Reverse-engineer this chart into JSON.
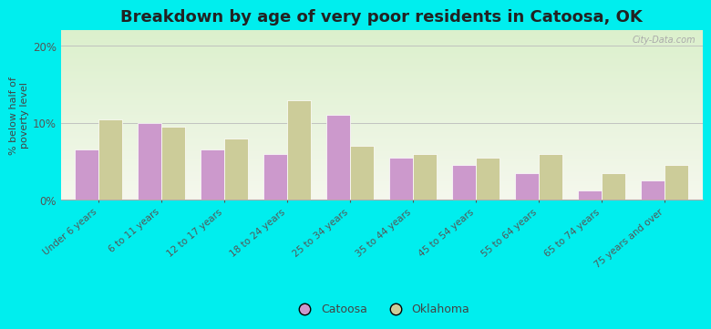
{
  "title": "Breakdown by age of very poor residents in Catoosa, OK",
  "ylabel": "% below half of\npoverty level",
  "categories": [
    "Under 6 years",
    "6 to 11 years",
    "12 to 17 years",
    "18 to 24 years",
    "25 to 34 years",
    "35 to 44 years",
    "45 to 54 years",
    "55 to 64 years",
    "65 to 74 years",
    "75 years and over"
  ],
  "catoosa": [
    6.5,
    10.0,
    6.5,
    6.0,
    11.0,
    5.5,
    4.5,
    3.5,
    1.2,
    2.5
  ],
  "oklahoma": [
    10.5,
    9.5,
    8.0,
    13.0,
    7.0,
    6.0,
    5.5,
    6.0,
    3.5,
    4.5
  ],
  "catoosa_color": "#cc99cc",
  "oklahoma_color": "#cccc99",
  "background_outer": "#00eeee",
  "ylim": [
    0,
    22
  ],
  "yticks": [
    0,
    10,
    20
  ],
  "ytick_labels": [
    "0%",
    "10%",
    "20%"
  ],
  "bar_width": 0.38,
  "title_fontsize": 13,
  "label_fontsize": 7.5,
  "tick_fontsize": 8.5,
  "watermark": "City-Data.com"
}
